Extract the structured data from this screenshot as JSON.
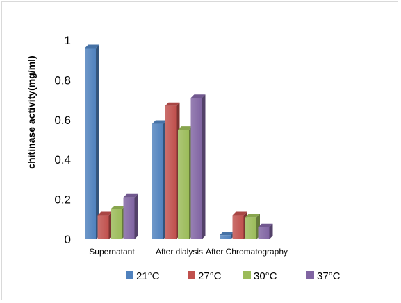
{
  "chart_data": {
    "type": "bar",
    "title": "",
    "xlabel": "",
    "ylabel": "chitinase activity(mg/ml)",
    "ylim": [
      0,
      1
    ],
    "yticks": [
      "0",
      "0.2",
      "0.4",
      "0.6",
      "0.8",
      "1"
    ],
    "categories": [
      "Supernatant",
      "After dialysis",
      "After Chromatography",
      ""
    ],
    "series": [
      {
        "name": "21°C",
        "color": "#4f81bd",
        "values": [
          0.96,
          0.58,
          0.02,
          null
        ]
      },
      {
        "name": "27°C",
        "color": "#c0504d",
        "values": [
          0.12,
          0.67,
          0.12,
          null
        ]
      },
      {
        "name": "30°C",
        "color": "#9bbb59",
        "values": [
          0.15,
          0.55,
          0.11,
          null
        ]
      },
      {
        "name": "37°C",
        "color": "#8064a2",
        "values": [
          0.21,
          0.71,
          0.06,
          null
        ]
      }
    ],
    "grid": false,
    "legend": "bottom"
  }
}
